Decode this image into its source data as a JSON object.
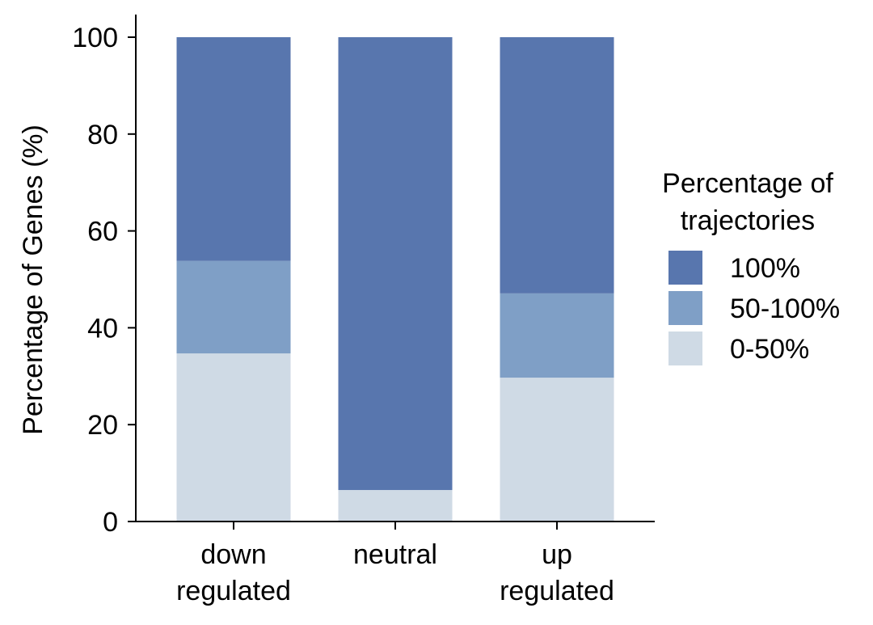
{
  "chart_data": {
    "type": "bar",
    "stacked": true,
    "categories": [
      [
        "down",
        "regulated"
      ],
      [
        "neutral"
      ],
      [
        "up",
        "regulated"
      ]
    ],
    "series": [
      {
        "name": "0-50%",
        "color": "#cfdae5",
        "values": [
          34.7,
          6.5,
          29.7
        ]
      },
      {
        "name": "50-100%",
        "color": "#7f9fc6",
        "values": [
          19.1,
          0,
          17.4
        ]
      },
      {
        "name": "100%",
        "color": "#5876ae",
        "values": [
          46.2,
          93.5,
          52.9
        ]
      }
    ],
    "ylabel": "Percentage of Genes  (%)",
    "xlabel": "",
    "ylim": [
      0,
      100
    ],
    "yticks": [
      0,
      20,
      40,
      60,
      80,
      100
    ],
    "legend": {
      "title": [
        "Percentage of",
        "trajectories"
      ],
      "order": [
        "100%",
        "50-100%",
        "0-50%"
      ],
      "placement": "right"
    },
    "grid": false
  }
}
